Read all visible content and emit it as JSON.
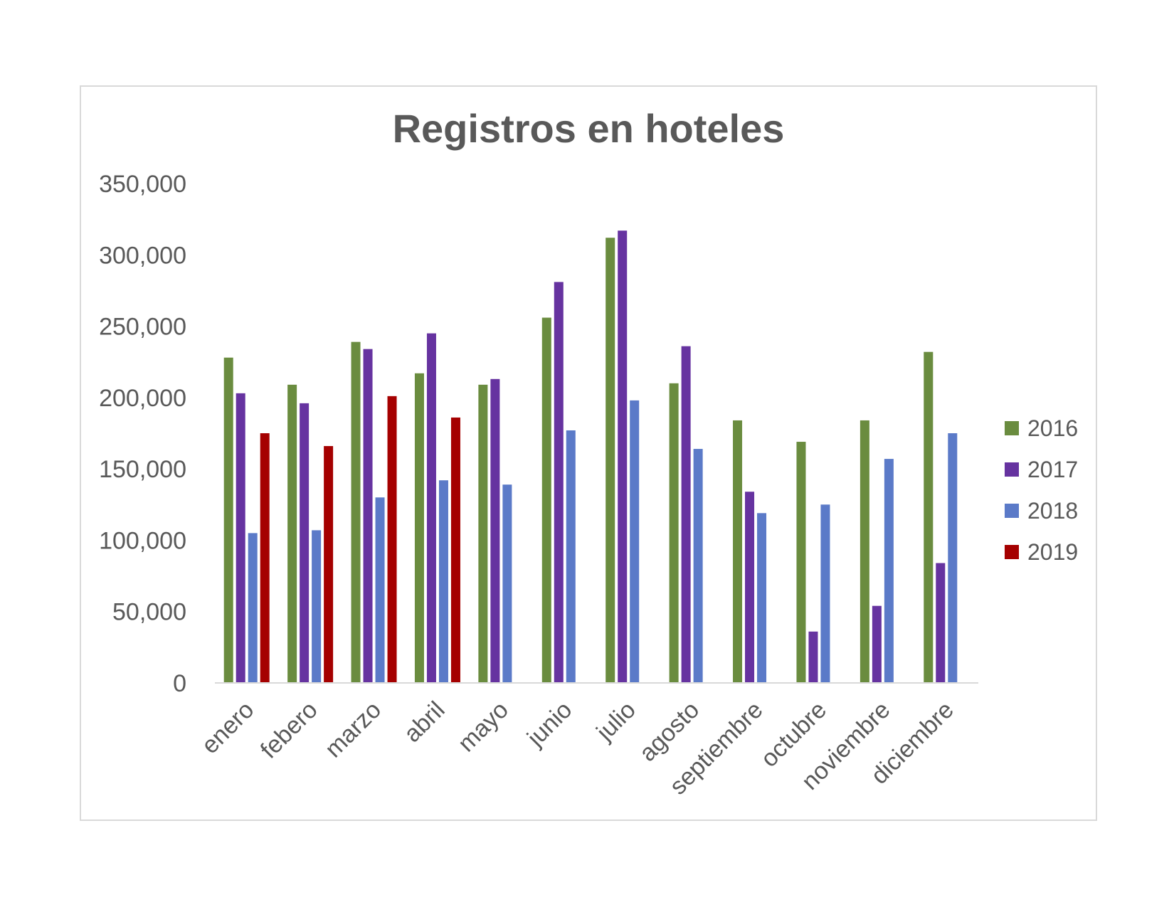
{
  "chart_data": {
    "type": "bar",
    "title": "Registros en hoteles",
    "xlabel": "",
    "ylabel": "",
    "ylim": [
      0,
      350000
    ],
    "yticks": [
      {
        "value": 0,
        "label": "0"
      },
      {
        "value": 50000,
        "label": "50,000"
      },
      {
        "value": 100000,
        "label": "100,000"
      },
      {
        "value": 150000,
        "label": "150,000"
      },
      {
        "value": 200000,
        "label": "200,000"
      },
      {
        "value": 250000,
        "label": "250,000"
      },
      {
        "value": 300000,
        "label": "300,000"
      },
      {
        "value": 350000,
        "label": "350,000"
      }
    ],
    "grid": false,
    "legend_position": "right",
    "categories": [
      "enero",
      "febero",
      "marzo",
      "abril",
      "mayo",
      "junio",
      "julio",
      "agosto",
      "septiembre",
      "octubre",
      "noviembre",
      "diciembre"
    ],
    "series": [
      {
        "name": "2016",
        "color": "#6a8c3f",
        "values": [
          228000,
          209000,
          239000,
          217000,
          209000,
          256000,
          312000,
          210000,
          184000,
          169000,
          184000,
          232000
        ]
      },
      {
        "name": "2017",
        "color": "#6633a0",
        "values": [
          203000,
          196000,
          234000,
          245000,
          213000,
          281000,
          317000,
          236000,
          134000,
          36000,
          54000,
          84000
        ]
      },
      {
        "name": "2018",
        "color": "#5b7ac8",
        "values": [
          105000,
          107000,
          130000,
          142000,
          139000,
          177000,
          198000,
          164000,
          119000,
          125000,
          157000,
          175000
        ]
      },
      {
        "name": "2019",
        "color": "#a50000",
        "values": [
          175000,
          166000,
          201000,
          186000,
          null,
          null,
          null,
          null,
          null,
          null,
          null,
          null
        ]
      }
    ]
  }
}
